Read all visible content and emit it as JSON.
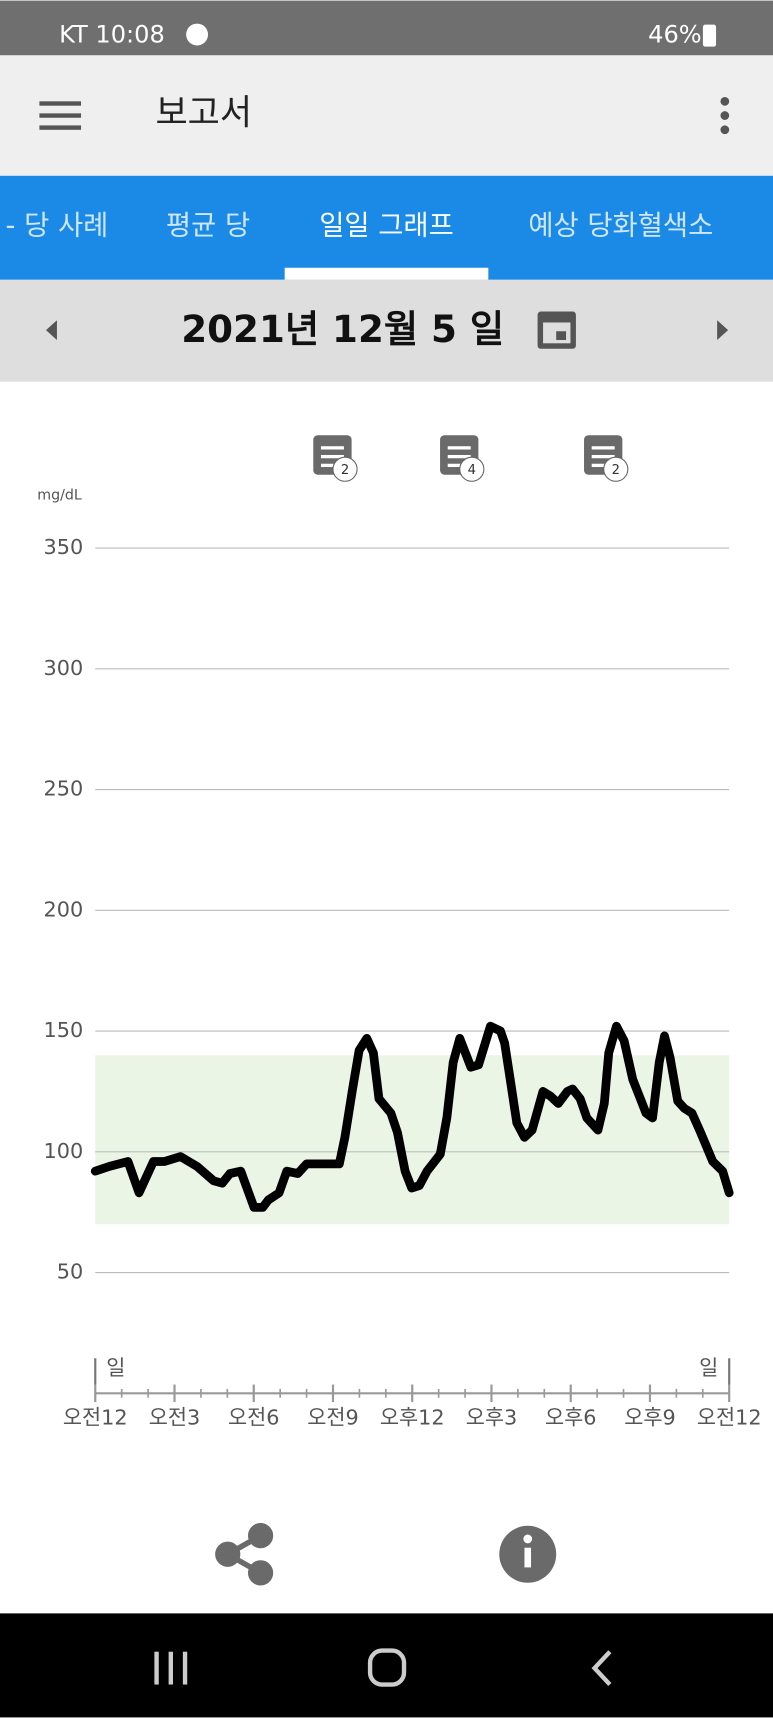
{
  "status_bar": {
    "carrier_time": "KT 10:08",
    "battery": "46%"
  },
  "app_bar": {
    "title": "보고서"
  },
  "tabs": [
    "- 당 사례",
    "평균 당",
    "일일 그래프",
    "예상 당화혈색소"
  ],
  "date": "2021년 12월 5 일",
  "chart_data": {
    "type": "line",
    "y_label": "mg/dL",
    "x": [
      0,
      0.54,
      1.24,
      1.66,
      2.2,
      2.61,
      3.23,
      3.85,
      4.48,
      4.81,
      5.1,
      5.51,
      6.01,
      6.34,
      6.55,
      6.96,
      7.25,
      7.67,
      8,
      8.41,
      9.24,
      9.45,
      9.74,
      9.99,
      10.28,
      10.53,
      10.74,
      11.19,
      11.44,
      11.73,
      11.98,
      12.27,
      12.56,
      13.06,
      13.31,
      13.55,
      13.8,
      14.22,
      14.51,
      14.96,
      15.34,
      15.5,
      15.71,
      15.96,
      16.25,
      16.54,
      16.95,
      17.24,
      17.53,
      17.87,
      18.07,
      18.36,
      18.61,
      19.03,
      19.27,
      19.44,
      19.73,
      20.02,
      20.35,
      20.85,
      21.1,
      21.35,
      21.55,
      21.76,
      22.05,
      22.3,
      22.59,
      22.92,
      23.38,
      23.75,
      24
    ],
    "values": [
      92,
      94,
      96,
      83,
      96,
      96,
      98,
      94,
      88,
      87,
      91,
      92,
      77,
      77,
      80,
      83,
      92,
      91,
      95,
      95,
      95,
      106,
      126,
      142,
      147,
      141,
      122,
      116,
      108,
      92,
      85,
      86,
      92,
      99,
      114,
      137,
      147,
      135,
      136,
      152,
      150,
      145,
      130,
      112,
      106,
      109,
      125,
      123,
      120,
      125,
      126,
      122,
      114,
      109,
      120,
      141,
      152,
      146,
      130,
      116,
      114,
      137,
      148,
      139,
      121,
      118,
      116,
      108,
      96,
      92,
      83
    ],
    "color": "#000000",
    "target_range": [
      70,
      140
    ],
    "target_color": "#ebf5e6",
    "xlim": [
      0,
      24
    ],
    "ylim": [
      0,
      350
    ],
    "yticks": [
      50,
      100,
      150,
      200,
      250,
      300,
      350
    ],
    "xticks": [
      {
        "value": 0,
        "label": "오전12"
      },
      {
        "value": 3,
        "label": "오전3"
      },
      {
        "value": 6,
        "label": "오전6"
      },
      {
        "value": 9,
        "label": "오전9"
      },
      {
        "value": 12,
        "label": "오후12"
      },
      {
        "value": 15,
        "label": "오후3"
      },
      {
        "value": 18,
        "label": "오후6"
      },
      {
        "value": 21,
        "label": "오후9"
      },
      {
        "value": 24,
        "label": "오전12"
      }
    ],
    "x_edge_labels": [
      "일",
      "일"
    ],
    "grid": true,
    "notes": [
      {
        "x": 9,
        "label": "2"
      },
      {
        "x": 13.8,
        "label": "4"
      },
      {
        "x": 19.25,
        "label": "2"
      }
    ]
  }
}
